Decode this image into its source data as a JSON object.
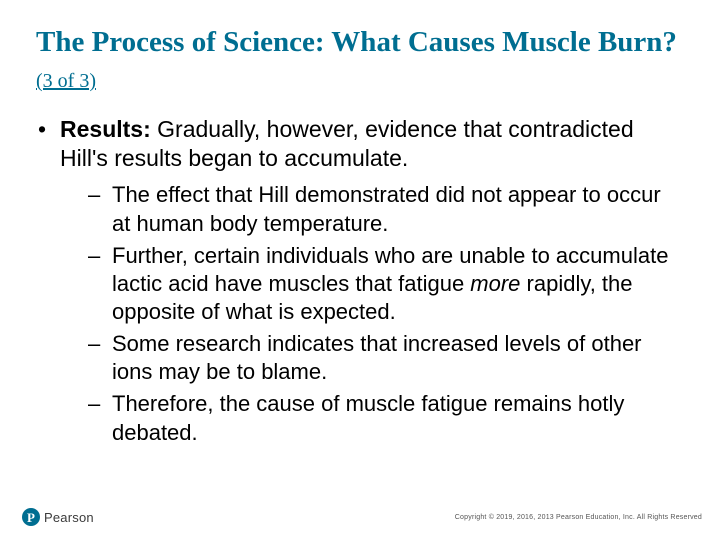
{
  "colors": {
    "title": "#006e91",
    "body_text": "#000000",
    "background": "#ffffff",
    "logo_bg": "#006e91",
    "logo_text": "#3b3b3b",
    "copyright": "#555555"
  },
  "typography": {
    "title_family": "Times New Roman",
    "title_size_pt": 22,
    "title_weight": "bold",
    "sub_size_pt": 15,
    "body_family": "Arial",
    "body_size_pt": 17,
    "level2_size_pt": 16,
    "copyright_size_pt": 5
  },
  "title": {
    "main": "The Process of Science: What Causes Muscle Burn?",
    "sub": "(3 of 3)"
  },
  "bullets": {
    "lead_label": "Results:",
    "lead_text": " Gradually, however, evidence that contradicted Hill's results began to accumulate.",
    "sub": [
      {
        "text": "The effect that Hill demonstrated did not appear to occur at human body temperature."
      },
      {
        "pre": "Further, certain individuals who are unable to accumulate lactic acid have muscles that fatigue ",
        "em": "more",
        "post": " rapidly, the opposite of what is expected."
      },
      {
        "text": "Some research indicates that increased levels of other ions may be to blame."
      },
      {
        "text": "Therefore, the cause of muscle fatigue remains hotly debated."
      }
    ]
  },
  "footer": {
    "logo_mark_letter": "P",
    "logo_text": "Pearson",
    "copyright": "Copyright © 2019, 2016, 2013 Pearson Education, Inc. All Rights Reserved"
  }
}
